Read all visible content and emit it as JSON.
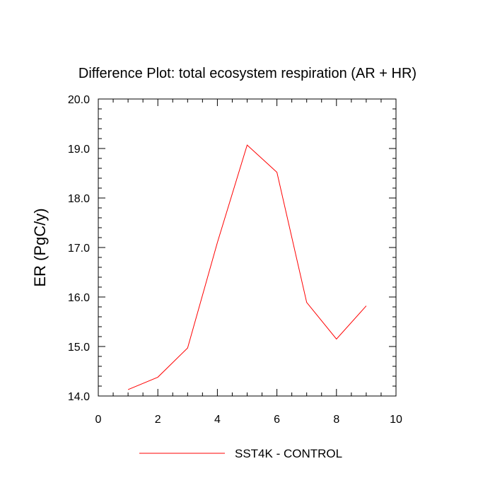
{
  "chart_data": {
    "type": "line",
    "title": "Difference Plot: total ecosystem respiration (AR + HR)",
    "xlabel": "",
    "ylabel": "ER  (PgC/y)",
    "xlim": [
      0,
      10
    ],
    "ylim": [
      14.0,
      20.0
    ],
    "x_ticks": [
      "0",
      "2",
      "4",
      "6",
      "8",
      "10"
    ],
    "y_ticks": [
      "14.0",
      "15.0",
      "16.0",
      "17.0",
      "18.0",
      "19.0",
      "20.0"
    ],
    "grid": false,
    "legend_position": "bottom-center",
    "series": [
      {
        "name": "SST4K - CONTROL",
        "color": "#ff0000",
        "x": [
          1,
          2,
          3,
          4,
          5,
          6,
          7,
          8,
          9
        ],
        "y": [
          14.13,
          14.38,
          14.97,
          17.1,
          19.07,
          18.52,
          15.89,
          15.15,
          15.82
        ]
      }
    ]
  }
}
